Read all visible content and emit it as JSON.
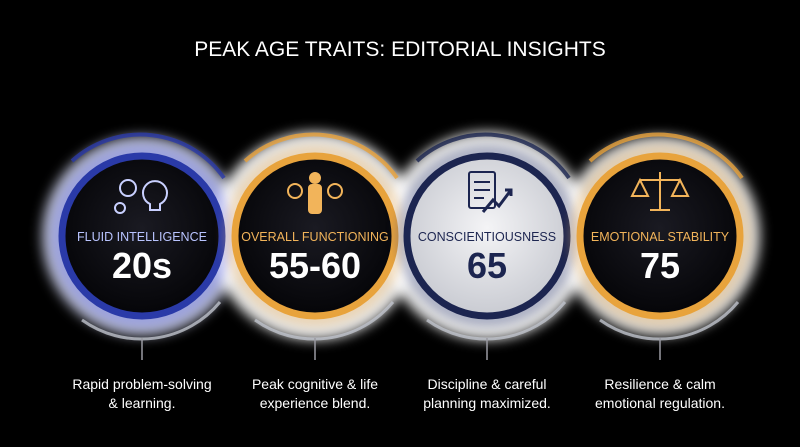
{
  "title": "PEAK AGE TRAITS: EDITORIAL INSIGHTS",
  "items": [
    {
      "label": "FLUID INTELLIGENCE",
      "value": "20s",
      "description": [
        "Rapid problem-solving",
        "& learning."
      ]
    },
    {
      "label": "OVERALL FUNCTIONING",
      "value": "55-60",
      "description": [
        "Peak cognitive & life",
        "experience blend."
      ]
    },
    {
      "label": "CONSCIENTIOUSNESS",
      "value": "65",
      "description": [
        "Discipline & careful",
        "planning maximized."
      ]
    },
    {
      "label": "EMOTIONAL STABILITY",
      "value": "75",
      "description": [
        "Resilience & calm",
        "emotional regulation."
      ]
    }
  ]
}
